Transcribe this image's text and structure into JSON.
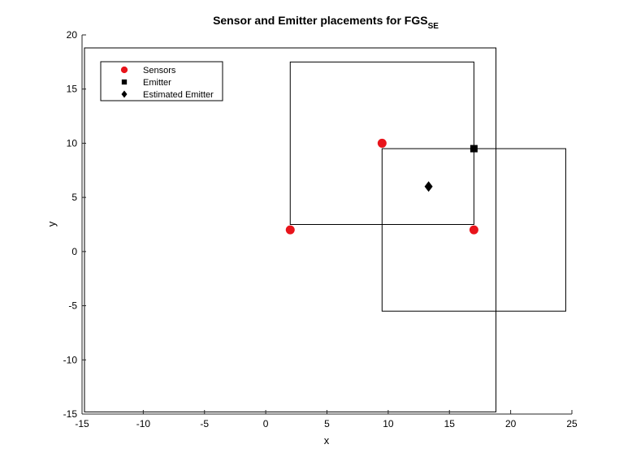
{
  "chart_data": {
    "type": "scatter",
    "title": "Sensor and Emitter placements for FGS",
    "title_subscript": "SE",
    "xlabel": "x",
    "ylabel": "y",
    "xlim": [
      -15,
      25
    ],
    "ylim": [
      -15,
      20
    ],
    "xticks": [
      -15,
      -10,
      -5,
      0,
      5,
      10,
      15,
      20,
      25
    ],
    "yticks": [
      -15,
      -10,
      -5,
      0,
      5,
      10,
      15,
      20
    ],
    "grid": false,
    "legend_position": "top-left",
    "series": [
      {
        "name": "Sensors",
        "marker": "circle",
        "color": "#e8141b",
        "points": [
          [
            2,
            2
          ],
          [
            9.5,
            10
          ],
          [
            17,
            2
          ]
        ]
      },
      {
        "name": "Emitter",
        "marker": "square",
        "color": "#000000",
        "points": [
          [
            17,
            9.5
          ]
        ]
      },
      {
        "name": "Estimated Emitter",
        "marker": "diamond",
        "color": "#000000",
        "points": [
          [
            13.3,
            6
          ]
        ]
      }
    ],
    "rectangles": [
      {
        "x0": -14.8,
        "y0": -14.8,
        "x1": 18.8,
        "y1": 18.8
      },
      {
        "x0": 2,
        "y0": 2.5,
        "x1": 17,
        "y1": 17.5
      },
      {
        "x0": 9.5,
        "y0": -5.5,
        "x1": 24.5,
        "y1": 9.5
      }
    ]
  }
}
